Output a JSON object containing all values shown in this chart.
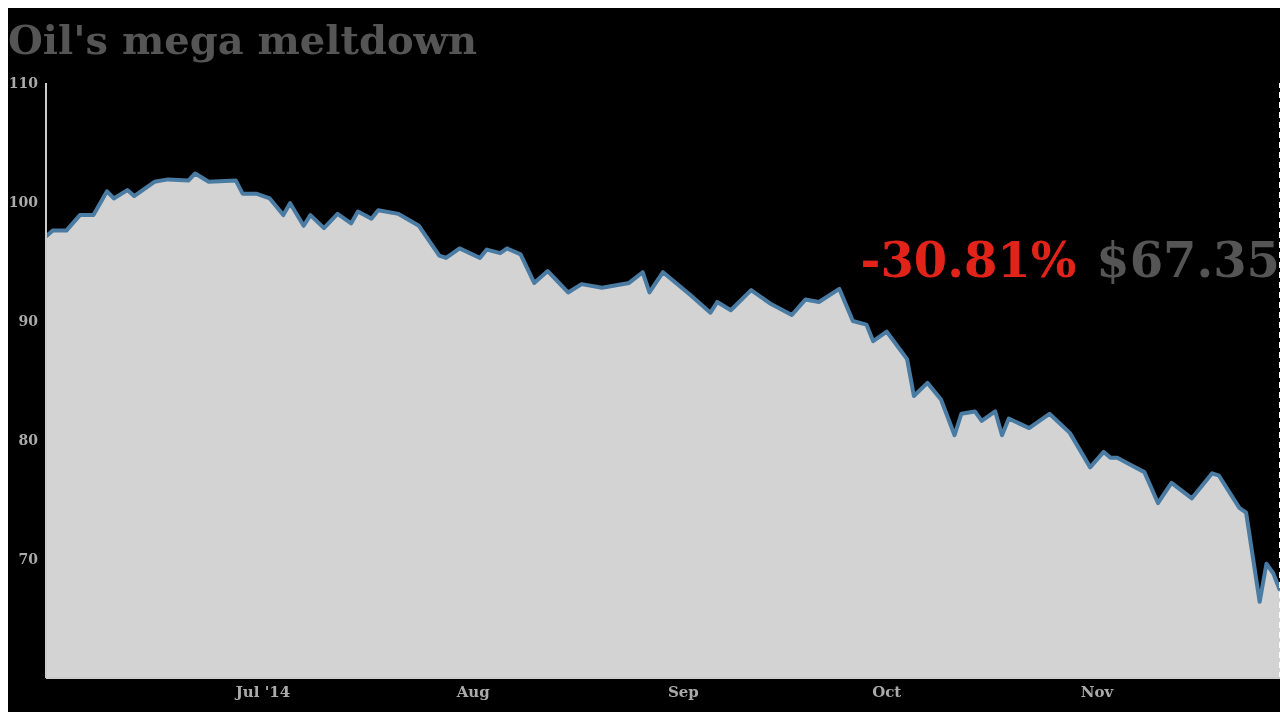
{
  "chart_data": {
    "type": "area",
    "title": "Oil's mega meltdown",
    "x": [
      "2014-05-30",
      "2014-05-31",
      "2014-06-02",
      "2014-06-04",
      "2014-06-06",
      "2014-06-08",
      "2014-06-09",
      "2014-06-11",
      "2014-06-12",
      "2014-06-15",
      "2014-06-17",
      "2014-06-20",
      "2014-06-21",
      "2014-06-23",
      "2014-06-27",
      "2014-06-28",
      "2014-06-30",
      "2014-07-02",
      "2014-07-04",
      "2014-07-05",
      "2014-07-07",
      "2014-07-08",
      "2014-07-10",
      "2014-07-12",
      "2014-07-14",
      "2014-07-15",
      "2014-07-17",
      "2014-07-18",
      "2014-07-21",
      "2014-07-24",
      "2014-07-27",
      "2014-07-28",
      "2014-07-30",
      "2014-08-02",
      "2014-08-03",
      "2014-08-05",
      "2014-08-06",
      "2014-08-08",
      "2014-08-10",
      "2014-08-12",
      "2014-08-15",
      "2014-08-17",
      "2014-08-20",
      "2014-08-24",
      "2014-08-26",
      "2014-08-27",
      "2014-08-29",
      "2014-09-02",
      "2014-09-05",
      "2014-09-06",
      "2014-09-08",
      "2014-09-11",
      "2014-09-14",
      "2014-09-17",
      "2014-09-19",
      "2014-09-21",
      "2014-09-24",
      "2014-09-26",
      "2014-09-28",
      "2014-09-29",
      "2014-10-01",
      "2014-10-04",
      "2014-10-05",
      "2014-10-07",
      "2014-10-09",
      "2014-10-11",
      "2014-10-12",
      "2014-10-14",
      "2014-10-15",
      "2014-10-17",
      "2014-10-18",
      "2014-10-19",
      "2014-10-22",
      "2014-10-25",
      "2014-10-28",
      "2014-10-31",
      "2014-11-02",
      "2014-11-03",
      "2014-11-04",
      "2014-11-06",
      "2014-11-08",
      "2014-11-10",
      "2014-11-12",
      "2014-11-15",
      "2014-11-18",
      "2014-11-19",
      "2014-11-22",
      "2014-11-23",
      "2014-11-25",
      "2014-11-26",
      "2014-11-27",
      "2014-11-28"
    ],
    "series": [
      {
        "color": "#4a7ba3",
        "values": [
          97.1,
          97.6,
          97.6,
          98.9,
          98.9,
          100.9,
          100.3,
          101.0,
          100.5,
          101.7,
          101.9,
          101.8,
          102.4,
          101.7,
          101.8,
          100.7,
          100.7,
          100.3,
          98.9,
          99.9,
          98.0,
          98.9,
          97.8,
          99.0,
          98.2,
          99.2,
          98.6,
          99.3,
          99.0,
          98.0,
          95.5,
          95.3,
          96.1,
          95.3,
          96.0,
          95.7,
          96.1,
          95.6,
          93.2,
          94.2,
          92.4,
          93.1,
          92.8,
          93.2,
          94.1,
          92.4,
          94.1,
          92.2,
          90.7,
          91.6,
          90.9,
          92.6,
          91.4,
          90.5,
          91.8,
          91.6,
          92.7,
          90.0,
          89.7,
          88.3,
          89.1,
          86.8,
          83.7,
          84.8,
          83.4,
          80.4,
          82.2,
          82.4,
          81.6,
          82.4,
          80.4,
          81.8,
          81.0,
          82.2,
          80.6,
          77.7,
          79.0,
          78.5,
          78.5,
          77.9,
          77.3,
          74.7,
          76.4,
          75.1,
          77.2,
          77.0,
          74.3,
          73.9,
          66.4,
          69.6,
          68.8,
          67.35
        ]
      }
    ],
    "xlim": [
      "2014-05-30",
      "2014-11-28"
    ],
    "xticks": [
      {
        "value": "2014-07-01",
        "label": "Jul '14"
      },
      {
        "value": "2014-08-01",
        "label": "Aug"
      },
      {
        "value": "2014-09-01",
        "label": "Sep"
      },
      {
        "value": "2014-10-01",
        "label": "Oct"
      },
      {
        "value": "2014-11-01",
        "label": "Nov"
      }
    ],
    "ylim": [
      60,
      110
    ],
    "yticks": [
      70,
      80,
      90,
      100,
      110
    ],
    "grid": false,
    "legend": false,
    "ref_lines": [
      {
        "axis": "x",
        "value": "2014-11-28",
        "color": "#ffffff",
        "line_style": "dashed"
      }
    ],
    "annotations": [
      "-30.81%",
      "$67.35"
    ]
  }
}
